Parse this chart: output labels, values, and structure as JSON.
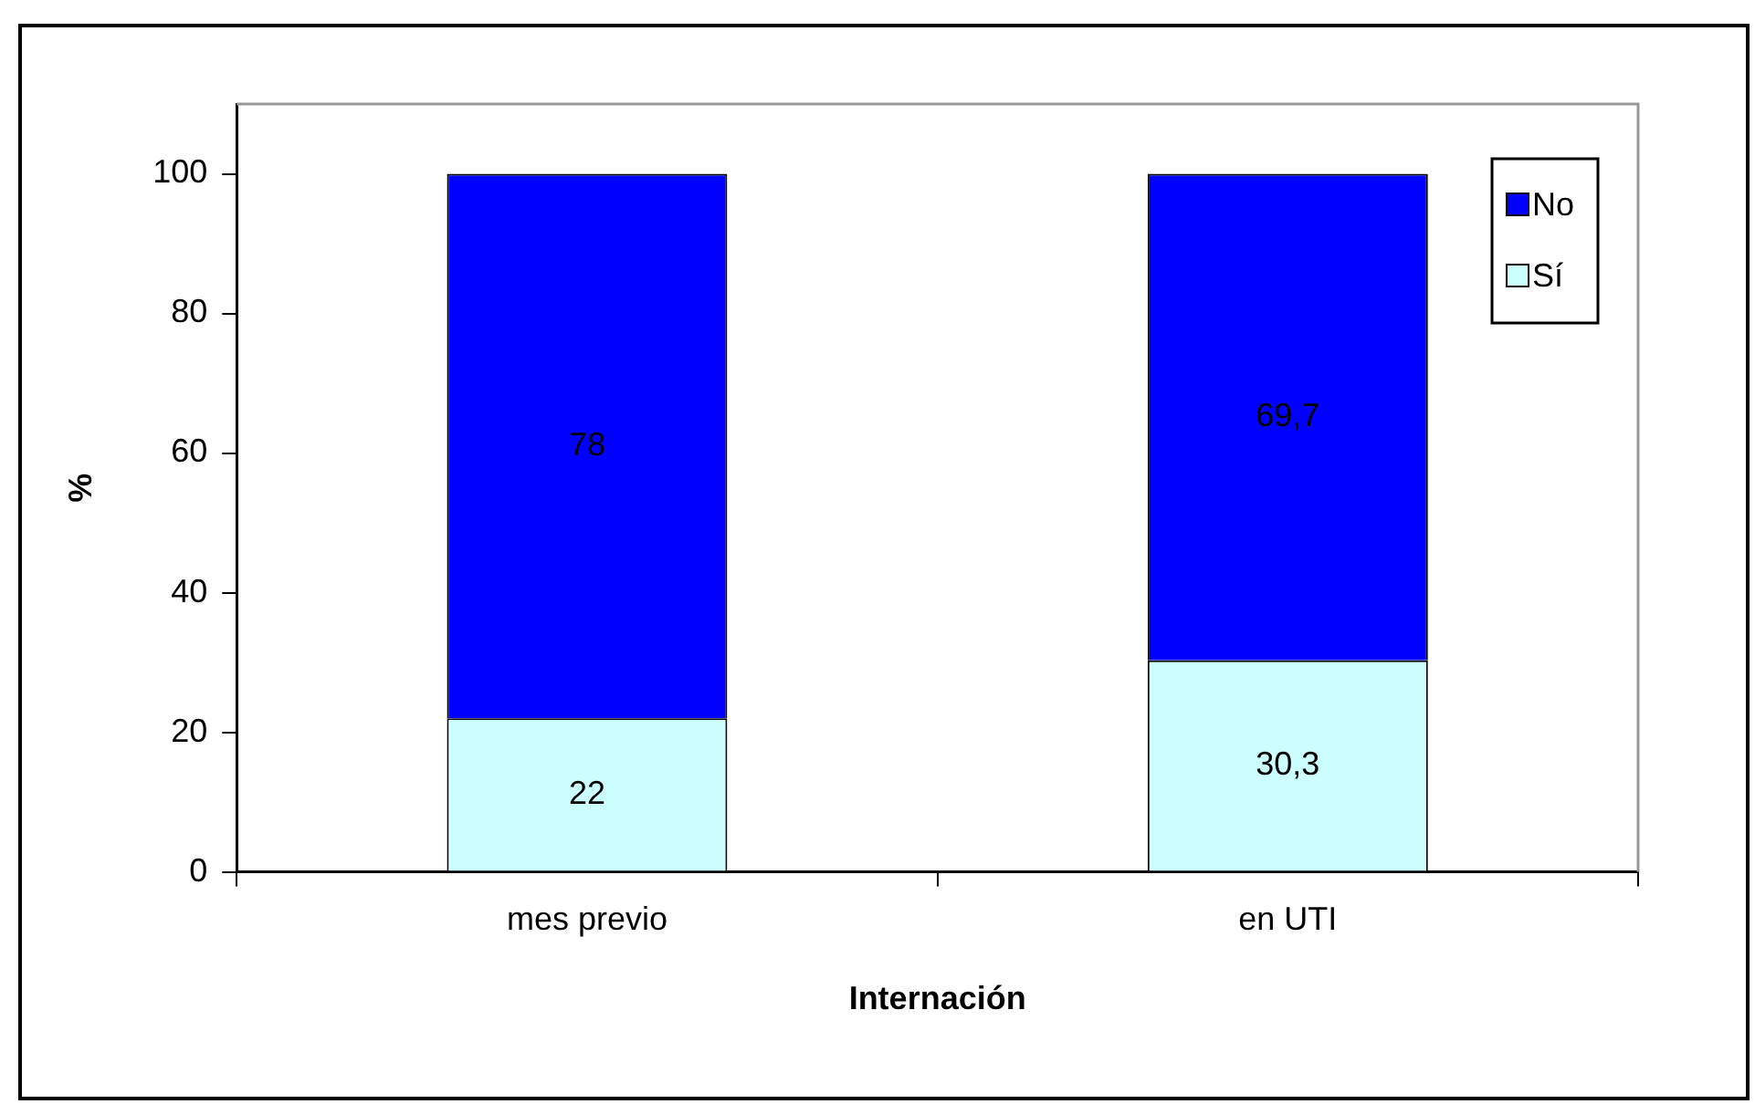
{
  "chart_data": {
    "type": "bar",
    "stacked": true,
    "xlabel": "Internación",
    "ylabel": "%",
    "categories": [
      "mes previo",
      "en UTI"
    ],
    "series": [
      {
        "name": "Sí",
        "color": "#ccffff",
        "values": [
          22,
          30.3
        ],
        "value_labels": [
          "22",
          "30,3"
        ]
      },
      {
        "name": "No",
        "color": "#0000ff",
        "values": [
          78,
          69.7
        ],
        "value_labels": [
          "78",
          "69,7"
        ]
      }
    ],
    "ylim": [
      0,
      110
    ],
    "yticks": [
      0,
      20,
      40,
      60,
      80,
      100
    ],
    "grid": false,
    "legend": "top right"
  }
}
